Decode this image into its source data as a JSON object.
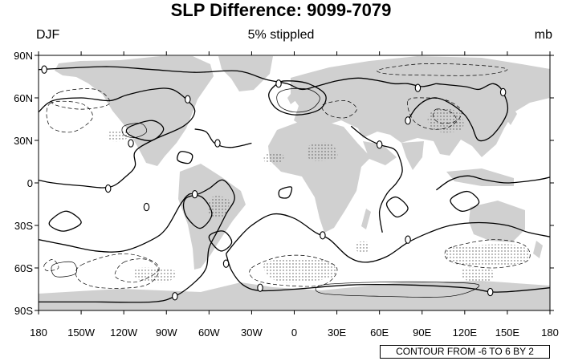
{
  "title": "SLP Difference: 9099-7079",
  "subtitle_left": "DJF",
  "subtitle_center": "5% stippled",
  "subtitle_right": "mb",
  "info_label": "CONTOUR FROM -6 TO 6 BY 2",
  "axes": {
    "lon_ticks": [
      {
        "value": -180,
        "label": "180"
      },
      {
        "value": -150,
        "label": "150W"
      },
      {
        "value": -120,
        "label": "120W"
      },
      {
        "value": -90,
        "label": "90W"
      },
      {
        "value": -60,
        "label": "60W"
      },
      {
        "value": -30,
        "label": "30W"
      },
      {
        "value": 0,
        "label": "0"
      },
      {
        "value": 30,
        "label": "30E"
      },
      {
        "value": 60,
        "label": "60E"
      },
      {
        "value": 90,
        "label": "90E"
      },
      {
        "value": 120,
        "label": "120E"
      },
      {
        "value": 150,
        "label": "150E"
      },
      {
        "value": 180,
        "label": "180"
      }
    ],
    "lat_ticks": [
      {
        "value": 90,
        "label": "90N"
      },
      {
        "value": 60,
        "label": "60N"
      },
      {
        "value": 30,
        "label": "30N"
      },
      {
        "value": 0,
        "label": "0"
      },
      {
        "value": -30,
        "label": "30S"
      },
      {
        "value": -60,
        "label": "60S"
      },
      {
        "value": -90,
        "label": "90S"
      }
    ],
    "lon_range": [
      -180,
      180
    ],
    "lat_range": [
      -90,
      90
    ]
  },
  "colors": {
    "land": "#d0d0d0",
    "contour": "#000000",
    "stipple": "#555555"
  },
  "zero_label_points": [
    [
      -176,
      80
    ],
    [
      -75,
      59
    ],
    [
      -115,
      28
    ],
    [
      -131,
      -4
    ],
    [
      -104,
      -17
    ],
    [
      -84,
      -80
    ],
    [
      -70,
      -8
    ],
    [
      -48,
      -57
    ],
    [
      -54,
      28
    ],
    [
      -24,
      -74
    ],
    [
      -11,
      70
    ],
    [
      20,
      -37
    ],
    [
      60,
      27
    ],
    [
      80,
      44
    ],
    [
      87,
      67
    ],
    [
      80,
      -40
    ],
    [
      138,
      -77
    ],
    [
      147,
      64
    ]
  ],
  "contours": {
    "zero": [
      [
        [
          -180,
          80
        ],
        [
          -160,
          81
        ],
        [
          -130,
          82
        ],
        [
          -100,
          80
        ],
        [
          -70,
          78
        ],
        [
          -40,
          79
        ],
        [
          -20,
          73
        ],
        [
          -5,
          70
        ],
        [
          5,
          66
        ],
        [
          15,
          68
        ],
        [
          30,
          72
        ],
        [
          45,
          74
        ],
        [
          60,
          72
        ],
        [
          70,
          70
        ],
        [
          80,
          70
        ],
        [
          90,
          68
        ],
        [
          100,
          70
        ]
      ],
      [
        [
          -180,
          50
        ],
        [
          -170,
          58
        ],
        [
          -150,
          60
        ],
        [
          -130,
          58
        ],
        [
          -118,
          62
        ],
        [
          -100,
          66
        ],
        [
          -86,
          66
        ],
        [
          -75,
          58
        ],
        [
          -70,
          50
        ],
        [
          -78,
          40
        ],
        [
          -100,
          30
        ],
        [
          -112,
          22
        ],
        [
          -112,
          12
        ],
        [
          -118,
          5
        ],
        [
          -130,
          -3
        ],
        [
          -150,
          -2
        ],
        [
          -170,
          0
        ],
        [
          -180,
          2
        ]
      ],
      [
        [
          -180,
          -40
        ],
        [
          -160,
          -44
        ],
        [
          -140,
          -48
        ],
        [
          -120,
          -48
        ],
        [
          -100,
          -40
        ],
        [
          -90,
          -32
        ],
        [
          -80,
          -15
        ],
        [
          -74,
          -8
        ],
        [
          -68,
          -8
        ],
        [
          -60,
          -4
        ],
        [
          -50,
          2
        ],
        [
          -42,
          -10
        ],
        [
          -48,
          -22
        ],
        [
          -54,
          -34
        ],
        [
          -60,
          -46
        ],
        [
          -62,
          -60
        ],
        [
          -70,
          -70
        ],
        [
          -84,
          -80
        ],
        [
          -100,
          -84
        ],
        [
          -140,
          -84
        ],
        [
          -180,
          -84
        ]
      ],
      [
        [
          -48,
          -50
        ],
        [
          -40,
          -40
        ],
        [
          -30,
          -30
        ],
        [
          -15,
          -22
        ],
        [
          0,
          -25
        ],
        [
          15,
          -35
        ],
        [
          25,
          -40
        ],
        [
          38,
          -52
        ],
        [
          50,
          -56
        ],
        [
          65,
          -52
        ],
        [
          80,
          -42
        ],
        [
          95,
          -35
        ],
        [
          110,
          -30
        ],
        [
          130,
          -28
        ],
        [
          150,
          -30
        ],
        [
          165,
          -35
        ],
        [
          180,
          -38
        ]
      ],
      [
        [
          -48,
          -50
        ],
        [
          -44,
          -62
        ],
        [
          -36,
          -72
        ],
        [
          -24,
          -76
        ],
        [
          0,
          -75
        ],
        [
          40,
          -72
        ],
        [
          80,
          -72
        ],
        [
          120,
          -74
        ],
        [
          140,
          -77
        ],
        [
          160,
          -76
        ],
        [
          180,
          -74
        ]
      ],
      [
        [
          -30,
          28
        ],
        [
          -45,
          25
        ],
        [
          -56,
          28
        ],
        [
          -62,
          36
        ],
        [
          -70,
          38
        ]
      ],
      [
        [
          40,
          40
        ],
        [
          50,
          32
        ],
        [
          60,
          27
        ],
        [
          70,
          24
        ],
        [
          74,
          18
        ],
        [
          76,
          8
        ],
        [
          72,
          0
        ],
        [
          65,
          -8
        ],
        [
          60,
          -20
        ],
        [
          62,
          -35
        ]
      ],
      [
        [
          80,
          44
        ],
        [
          85,
          52
        ],
        [
          92,
          58
        ],
        [
          100,
          60
        ],
        [
          110,
          56
        ],
        [
          120,
          48
        ],
        [
          125,
          40
        ],
        [
          130,
          30
        ],
        [
          140,
          34
        ],
        [
          150,
          50
        ],
        [
          147,
          64
        ],
        [
          140,
          70
        ],
        [
          130,
          66
        ],
        [
          120,
          68
        ],
        [
          100,
          70
        ]
      ],
      [
        [
          100,
          -5
        ],
        [
          110,
          2
        ],
        [
          122,
          5
        ],
        [
          135,
          2
        ],
        [
          150,
          0
        ],
        [
          170,
          2
        ],
        [
          180,
          4
        ]
      ]
    ],
    "closed": [
      [
        [
          -5,
          72
        ],
        [
          10,
          70
        ],
        [
          22,
          62
        ],
        [
          18,
          52
        ],
        [
          2,
          48
        ],
        [
          -12,
          52
        ],
        [
          -18,
          62
        ],
        [
          -12,
          70
        ]
      ],
      [
        [
          -115,
          40
        ],
        [
          -100,
          44
        ],
        [
          -92,
          38
        ],
        [
          -100,
          30
        ],
        [
          -112,
          32
        ],
        [
          -118,
          36
        ]
      ],
      [
        [
          -170,
          -25
        ],
        [
          -160,
          -20
        ],
        [
          -150,
          -28
        ],
        [
          -162,
          -34
        ],
        [
          -172,
          -30
        ]
      ],
      [
        [
          -75,
          -10
        ],
        [
          -65,
          -10
        ],
        [
          -58,
          -22
        ],
        [
          -66,
          -32
        ],
        [
          -75,
          -25
        ],
        [
          -78,
          -16
        ]
      ],
      [
        [
          -60,
          -38
        ],
        [
          -50,
          -34
        ],
        [
          -44,
          -42
        ],
        [
          -52,
          -48
        ]
      ],
      [
        [
          110,
          -12
        ],
        [
          122,
          -6
        ],
        [
          130,
          -14
        ],
        [
          118,
          -20
        ]
      ],
      [
        [
          65,
          -15
        ],
        [
          72,
          -10
        ],
        [
          80,
          -18
        ],
        [
          72,
          -24
        ]
      ],
      [
        [
          -10,
          -5
        ],
        [
          -2,
          -3
        ],
        [
          -4,
          -10
        ],
        [
          -10,
          -10
        ]
      ],
      [
        [
          -80,
          22
        ],
        [
          -72,
          20
        ],
        [
          -74,
          14
        ],
        [
          -82,
          16
        ]
      ]
    ],
    "positive": [
      [
        [
          -5,
          66
        ],
        [
          10,
          66
        ],
        [
          18,
          60
        ],
        [
          12,
          52
        ],
        [
          0,
          50
        ],
        [
          -10,
          54
        ],
        [
          -12,
          62
        ]
      ],
      [
        [
          -120,
          40
        ],
        [
          -108,
          42
        ],
        [
          -104,
          36
        ],
        [
          -112,
          32
        ],
        [
          -120,
          34
        ]
      ],
      [
        [
          -170,
          -58
        ],
        [
          -156,
          -56
        ],
        [
          -154,
          -64
        ],
        [
          -168,
          -66
        ]
      ],
      [
        [
          20,
          -72
        ],
        [
          60,
          -70
        ],
        [
          100,
          -70
        ],
        [
          130,
          -72
        ],
        [
          110,
          -80
        ],
        [
          60,
          -80
        ],
        [
          20,
          -78
        ]
      ]
    ],
    "negative": [
      [
        [
          -172,
          56
        ],
        [
          -150,
          56
        ],
        [
          -142,
          46
        ],
        [
          -156,
          36
        ],
        [
          -172,
          40
        ]
      ],
      [
        [
          -165,
          64
        ],
        [
          -140,
          66
        ],
        [
          -130,
          56
        ],
        [
          -150,
          52
        ],
        [
          -170,
          56
        ]
      ],
      [
        [
          -150,
          -58
        ],
        [
          -120,
          -50
        ],
        [
          -96,
          -58
        ],
        [
          -104,
          -72
        ],
        [
          -136,
          -74
        ],
        [
          -152,
          -68
        ]
      ],
      [
        [
          -120,
          -56
        ],
        [
          -104,
          -54
        ],
        [
          -96,
          -62
        ],
        [
          -112,
          -70
        ],
        [
          -126,
          -66
        ]
      ],
      [
        [
          -30,
          -60
        ],
        [
          -10,
          -52
        ],
        [
          12,
          -52
        ],
        [
          30,
          -60
        ],
        [
          20,
          -72
        ],
        [
          -10,
          -72
        ],
        [
          -28,
          -68
        ]
      ],
      [
        [
          112,
          -45
        ],
        [
          140,
          -40
        ],
        [
          162,
          -44
        ],
        [
          164,
          -55
        ],
        [
          140,
          -60
        ],
        [
          112,
          -56
        ],
        [
          106,
          -50
        ]
      ],
      [
        [
          80,
          58
        ],
        [
          92,
          60
        ],
        [
          108,
          58
        ],
        [
          118,
          50
        ],
        [
          110,
          40
        ],
        [
          96,
          38
        ],
        [
          84,
          44
        ]
      ],
      [
        [
          100,
          52
        ],
        [
          110,
          50
        ],
        [
          114,
          44
        ],
        [
          104,
          42
        ],
        [
          98,
          46
        ]
      ],
      [
        [
          60,
          80
        ],
        [
          90,
          84
        ],
        [
          130,
          83
        ],
        [
          150,
          80
        ],
        [
          130,
          76
        ],
        [
          90,
          76
        ],
        [
          65,
          77
        ]
      ],
      [
        [
          20,
          55
        ],
        [
          36,
          58
        ],
        [
          44,
          52
        ],
        [
          36,
          46
        ],
        [
          24,
          48
        ]
      ],
      [
        [
          -176,
          -58
        ],
        [
          -170,
          -54
        ],
        [
          -166,
          -60
        ],
        [
          -174,
          -62
        ]
      ]
    ]
  },
  "stipple_regions": [
    [
      [
        100,
        52
      ],
      [
        116,
        50
      ],
      [
        118,
        38
      ],
      [
        102,
        36
      ],
      [
        94,
        44
      ]
    ],
    [
      [
        110,
        -46
      ],
      [
        158,
        -44
      ],
      [
        162,
        -56
      ],
      [
        130,
        -58
      ],
      [
        110,
        -56
      ]
    ],
    [
      [
        -20,
        -56
      ],
      [
        20,
        -54
      ],
      [
        28,
        -66
      ],
      [
        -10,
        -70
      ]
    ],
    [
      [
        -110,
        -60
      ],
      [
        -84,
        -62
      ],
      [
        -90,
        -70
      ],
      [
        -110,
        -68
      ]
    ],
    [
      [
        -130,
        36
      ],
      [
        -116,
        36
      ],
      [
        -120,
        30
      ],
      [
        -130,
        30
      ]
    ],
    [
      [
        10,
        26
      ],
      [
        25,
        28
      ],
      [
        30,
        18
      ],
      [
        12,
        16
      ]
    ],
    [
      [
        -20,
        20
      ],
      [
        -8,
        20
      ],
      [
        -10,
        14
      ],
      [
        -20,
        14
      ]
    ],
    [
      [
        -58,
        -10
      ],
      [
        -46,
        -12
      ],
      [
        -50,
        -24
      ],
      [
        -60,
        -22
      ]
    ],
    [
      [
        120,
        -60
      ],
      [
        140,
        -62
      ],
      [
        136,
        -70
      ],
      [
        120,
        -68
      ]
    ],
    [
      [
        44,
        -42
      ],
      [
        52,
        -42
      ],
      [
        52,
        -48
      ],
      [
        44,
        -48
      ]
    ]
  ]
}
